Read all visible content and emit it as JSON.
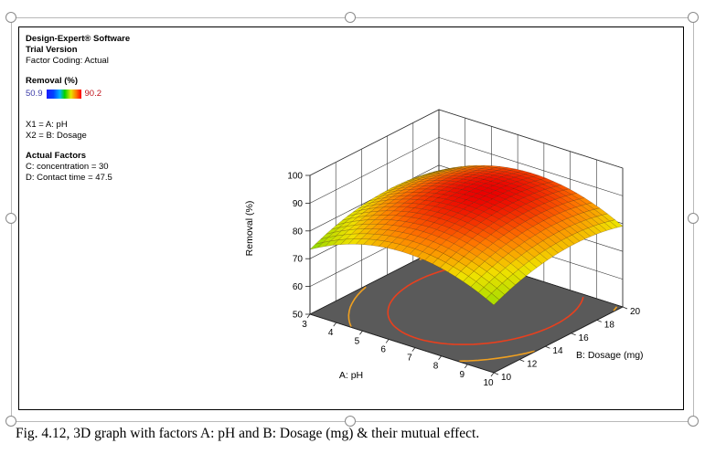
{
  "legend": {
    "software": "Design-Expert® Software",
    "version": "Trial Version",
    "coding": "Factor Coding: Actual",
    "response_label": "Removal (%)",
    "range_low": "50.9",
    "range_high": "90.2",
    "x1": "X1 = A: pH",
    "x2": "X2 = B: Dosage",
    "actual_title": "Actual Factors",
    "factor_c": "C: concentration = 30",
    "factor_d": "D: Contact time = 47.5"
  },
  "caption": "Fig. 4.12, 3D graph with factors A: pH and B: Dosage (mg) & their mutual effect.",
  "colors": {
    "floor": "#5a5a5a",
    "grid": "#333333",
    "low": "#3a3aa8",
    "high": "#c0141c"
  },
  "chart_data": {
    "type": "surface",
    "title": "",
    "response": "Removal (%)",
    "xlabel": "A: pH",
    "ylabel": "B: Dosage (mg)",
    "zlabel": "Removal (%)",
    "x_range": [
      3,
      10
    ],
    "y_range": [
      10,
      20
    ],
    "z_range": [
      50,
      100
    ],
    "x_ticks": [
      3,
      4,
      5,
      6,
      7,
      8,
      9,
      10
    ],
    "y_ticks": [
      10,
      12,
      14,
      16,
      18,
      20
    ],
    "z_ticks": [
      50,
      60,
      70,
      80,
      90,
      100
    ],
    "surface_min": 50.9,
    "surface_max": 90.2,
    "surface_model": {
      "center_x": 6.6,
      "center_y": 16.3,
      "peak": 90.2,
      "curv_x": 0.75,
      "curv_y": 0.18
    },
    "grid_resolution": 24,
    "contour_levels": [
      70,
      75,
      80,
      85
    ],
    "contour_colors": [
      "#9bd21e",
      "#e6dc1e",
      "#f0a020",
      "#e8401e"
    ]
  }
}
